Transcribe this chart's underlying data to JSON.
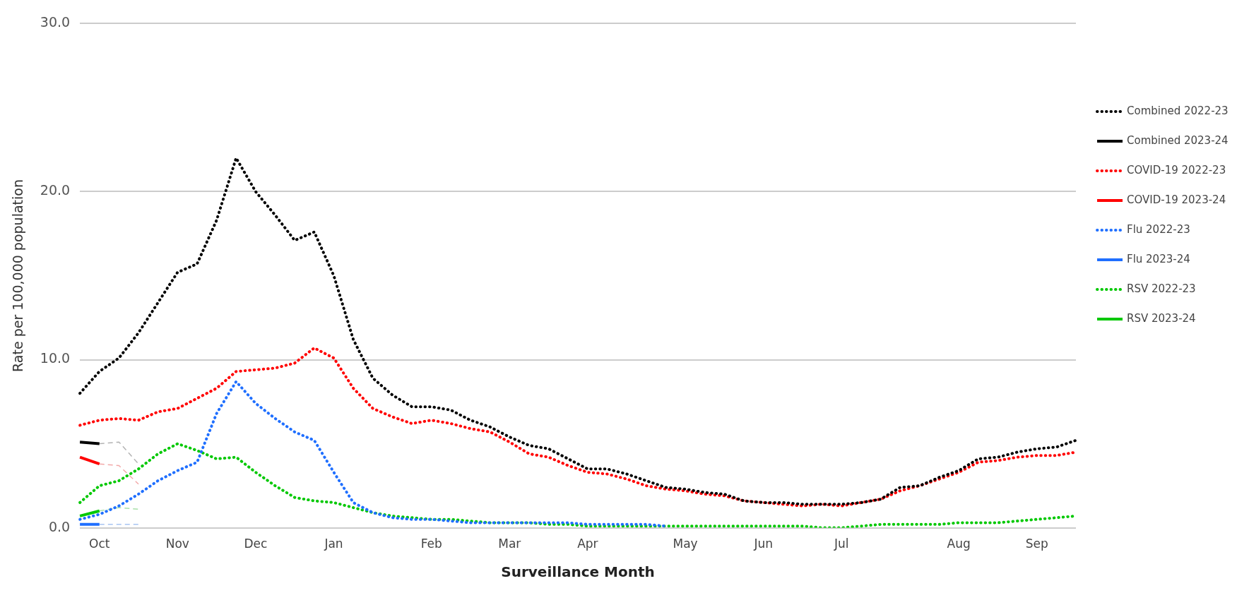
{
  "chart_data": {
    "type": "line",
    "xlabel": "Surveillance Month",
    "ylabel": "Rate per 100,000 population",
    "categories": [
      null,
      "Oct",
      null,
      null,
      null,
      "Nov",
      null,
      null,
      null,
      "Dec",
      null,
      null,
      null,
      "Jan",
      null,
      null,
      null,
      null,
      "Feb",
      null,
      null,
      null,
      "Mar",
      null,
      null,
      null,
      "Apr",
      null,
      null,
      null,
      null,
      "May",
      null,
      null,
      null,
      "Jun",
      null,
      null,
      null,
      "Jul",
      null,
      null,
      null,
      null,
      null,
      "Aug",
      null,
      null,
      null,
      "Sep",
      null,
      null
    ],
    "ylim": [
      0,
      30
    ],
    "yticks": [
      {
        "value": 0,
        "label": "0.0"
      },
      {
        "value": 10,
        "label": "10.0"
      },
      {
        "value": 20,
        "label": "20.0"
      },
      {
        "value": 30,
        "label": "30.0"
      }
    ],
    "grid": "y",
    "legend": "right",
    "marker": "none",
    "series": [
      {
        "name": "Combined 2022-23",
        "color": "#000000",
        "line_style": "dotted",
        "values": [
          8.0,
          9.3,
          10.1,
          11.6,
          13.4,
          15.2,
          15.7,
          18.3,
          22.0,
          20.0,
          18.6,
          17.1,
          17.6,
          15.0,
          11.2,
          8.9,
          7.9,
          7.2,
          7.2,
          7.0,
          6.4,
          6.0,
          5.4,
          4.9,
          4.7,
          4.1,
          3.5,
          3.5,
          3.2,
          2.8,
          2.4,
          2.3,
          2.1,
          2.0,
          1.6,
          1.5,
          1.5,
          1.4,
          1.4,
          1.4,
          1.5,
          1.7,
          2.4,
          2.5,
          3.0,
          3.4,
          4.1,
          4.2,
          4.5,
          4.7,
          4.8,
          5.2
        ]
      },
      {
        "name": "Combined 2023-24",
        "color": "#000000",
        "line_style": "solid",
        "values": [
          5.1,
          5.0,
          null,
          null,
          null,
          null,
          null,
          null,
          null,
          null,
          null,
          null,
          null,
          null,
          null,
          null,
          null,
          null,
          null,
          null,
          null,
          null,
          null,
          null,
          null,
          null,
          null,
          null,
          null,
          null,
          null,
          null,
          null,
          null,
          null,
          null,
          null,
          null,
          null,
          null,
          null,
          null,
          null,
          null,
          null,
          null,
          null,
          null,
          null,
          null,
          null,
          null
        ]
      },
      {
        "color": "#b4b4b4",
        "line_style": "dashed",
        "values": [
          null,
          5.0,
          5.1,
          3.8,
          null,
          null,
          null,
          null,
          null,
          null,
          null,
          null,
          null,
          null,
          null,
          null,
          null,
          null,
          null,
          null,
          null,
          null,
          null,
          null,
          null,
          null,
          null,
          null,
          null,
          null,
          null,
          null,
          null,
          null,
          null,
          null,
          null,
          null,
          null,
          null,
          null,
          null,
          null,
          null,
          null,
          null,
          null,
          null,
          null,
          null,
          null,
          null
        ]
      },
      {
        "name": "COVID-19 2022-23",
        "color": "#ff0000",
        "line_style": "dotted",
        "values": [
          6.1,
          6.4,
          6.5,
          6.4,
          6.9,
          7.1,
          7.7,
          8.3,
          9.3,
          9.4,
          9.5,
          9.8,
          10.7,
          10.1,
          8.3,
          7.1,
          6.6,
          6.2,
          6.4,
          6.2,
          5.9,
          5.7,
          5.1,
          4.4,
          4.2,
          3.7,
          3.3,
          3.2,
          2.9,
          2.5,
          2.3,
          2.2,
          2.0,
          1.9,
          1.6,
          1.5,
          1.4,
          1.3,
          1.4,
          1.3,
          1.5,
          1.7,
          2.2,
          2.5,
          2.9,
          3.3,
          3.9,
          4.0,
          4.2,
          4.3,
          4.3,
          4.5
        ]
      },
      {
        "name": "COVID-19 2023-24",
        "color": "#ff0000",
        "line_style": "solid",
        "values": [
          4.2,
          3.8,
          null,
          null,
          null,
          null,
          null,
          null,
          null,
          null,
          null,
          null,
          null,
          null,
          null,
          null,
          null,
          null,
          null,
          null,
          null,
          null,
          null,
          null,
          null,
          null,
          null,
          null,
          null,
          null,
          null,
          null,
          null,
          null,
          null,
          null,
          null,
          null,
          null,
          null,
          null,
          null,
          null,
          null,
          null,
          null,
          null,
          null,
          null,
          null,
          null,
          null
        ]
      },
      {
        "color": "#f2a8a8",
        "line_style": "dashed",
        "values": [
          null,
          3.8,
          3.7,
          2.6,
          null,
          null,
          null,
          null,
          null,
          null,
          null,
          null,
          null,
          null,
          null,
          null,
          null,
          null,
          null,
          null,
          null,
          null,
          null,
          null,
          null,
          null,
          null,
          null,
          null,
          null,
          null,
          null,
          null,
          null,
          null,
          null,
          null,
          null,
          null,
          null,
          null,
          null,
          null,
          null,
          null,
          null,
          null,
          null,
          null,
          null,
          null,
          null
        ]
      },
      {
        "name": "Flu 2022-23",
        "color": "#1f6fff",
        "line_style": "dotted",
        "values": [
          0.5,
          0.8,
          1.3,
          2.0,
          2.8,
          3.4,
          3.9,
          6.8,
          8.7,
          7.4,
          6.5,
          5.7,
          5.2,
          3.3,
          1.5,
          0.9,
          0.6,
          0.5,
          0.5,
          0.4,
          0.3,
          0.3,
          0.3,
          0.3,
          0.3,
          0.3,
          0.2,
          0.2,
          0.2,
          0.2,
          0.1,
          null,
          null,
          null,
          null,
          null,
          null,
          null,
          null,
          null,
          null,
          null,
          null,
          null,
          null,
          null,
          null,
          null,
          null,
          null,
          null,
          null
        ]
      },
      {
        "name": "Flu 2023-24",
        "color": "#1f6fff",
        "line_style": "solid",
        "values": [
          0.2,
          0.2,
          null,
          null,
          null,
          null,
          null,
          null,
          null,
          null,
          null,
          null,
          null,
          null,
          null,
          null,
          null,
          null,
          null,
          null,
          null,
          null,
          null,
          null,
          null,
          null,
          null,
          null,
          null,
          null,
          null,
          null,
          null,
          null,
          null,
          null,
          null,
          null,
          null,
          null,
          null,
          null,
          null,
          null,
          null,
          null,
          null,
          null,
          null,
          null,
          null,
          null
        ]
      },
      {
        "color": "#a8c4f2",
        "line_style": "dashed",
        "values": [
          null,
          0.2,
          0.2,
          0.2,
          null,
          null,
          null,
          null,
          null,
          null,
          null,
          null,
          null,
          null,
          null,
          null,
          null,
          null,
          null,
          null,
          null,
          null,
          null,
          null,
          null,
          null,
          null,
          null,
          null,
          null,
          null,
          null,
          null,
          null,
          null,
          null,
          null,
          null,
          null,
          null,
          null,
          null,
          null,
          null,
          null,
          null,
          null,
          null,
          null,
          null,
          null,
          null
        ]
      },
      {
        "name": "RSV 2022-23",
        "color": "#00c800",
        "line_style": "dotted",
        "values": [
          1.5,
          2.5,
          2.8,
          3.5,
          4.4,
          5.0,
          4.6,
          4.1,
          4.2,
          3.3,
          2.5,
          1.8,
          1.6,
          1.5,
          1.2,
          0.9,
          0.7,
          0.6,
          0.5,
          0.5,
          0.4,
          0.3,
          0.3,
          0.3,
          0.2,
          0.2,
          0.1,
          0.1,
          0.1,
          0.1,
          0.1,
          0.1,
          0.1,
          0.1,
          0.1,
          0.1,
          0.1,
          0.1,
          0.0,
          0.0,
          0.1,
          0.2,
          0.2,
          0.2,
          0.2,
          0.3,
          0.3,
          0.3,
          0.4,
          0.5,
          0.6,
          0.7
        ]
      },
      {
        "name": "RSV 2023-24",
        "color": "#00c800",
        "line_style": "solid",
        "values": [
          0.7,
          1.0,
          null,
          null,
          null,
          null,
          null,
          null,
          null,
          null,
          null,
          null,
          null,
          null,
          null,
          null,
          null,
          null,
          null,
          null,
          null,
          null,
          null,
          null,
          null,
          null,
          null,
          null,
          null,
          null,
          null,
          null,
          null,
          null,
          null,
          null,
          null,
          null,
          null,
          null,
          null,
          null,
          null,
          null,
          null,
          null,
          null,
          null,
          null,
          null,
          null,
          null
        ]
      },
      {
        "color": "#a8e0a8",
        "line_style": "dashed",
        "values": [
          null,
          1.0,
          1.2,
          1.1,
          null,
          null,
          null,
          null,
          null,
          null,
          null,
          null,
          null,
          null,
          null,
          null,
          null,
          null,
          null,
          null,
          null,
          null,
          null,
          null,
          null,
          null,
          null,
          null,
          null,
          null,
          null,
          null,
          null,
          null,
          null,
          null,
          null,
          null,
          null,
          null,
          null,
          null,
          null,
          null,
          null,
          null,
          null,
          null,
          null,
          null,
          null,
          null
        ]
      }
    ]
  }
}
